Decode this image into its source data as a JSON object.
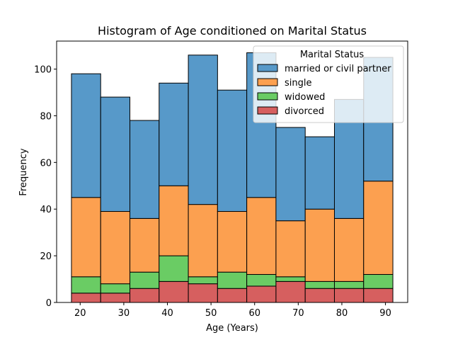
{
  "chart_data": {
    "type": "bar",
    "stacked": true,
    "title": "Histogram of Age conditioned on Marital Status",
    "xlabel": "Age (Years)",
    "ylabel": "Frequency",
    "bin_edges": [
      18,
      24.7,
      31.4,
      38.1,
      44.8,
      51.5,
      58.2,
      64.9,
      71.6,
      78.3,
      85.0,
      91.7
    ],
    "xlim": [
      14.6,
      95.1
    ],
    "ylim": [
      0,
      112
    ],
    "xticks": [
      20,
      30,
      40,
      50,
      60,
      70,
      80,
      90
    ],
    "yticks": [
      0,
      20,
      40,
      60,
      80,
      100
    ],
    "legend": {
      "title": "Marital Status",
      "placement": "upper right"
    },
    "series": [
      {
        "name": "divorced",
        "color": "#d65f5f",
        "values": [
          4,
          4,
          6,
          9,
          8,
          6,
          7,
          9,
          6,
          6,
          6
        ]
      },
      {
        "name": "widowed",
        "color": "#6acc64",
        "values": [
          7,
          4,
          7,
          11,
          3,
          7,
          5,
          2,
          3,
          3,
          6
        ]
      },
      {
        "name": "single",
        "color": "#fca050",
        "values": [
          34,
          31,
          23,
          30,
          31,
          26,
          33,
          24,
          31,
          27,
          40
        ]
      },
      {
        "name": "married or civil partner",
        "color": "#5799c9",
        "values": [
          53,
          49,
          42,
          44,
          64,
          52,
          62,
          40,
          31,
          51,
          53
        ]
      }
    ],
    "legend_order": [
      "married or civil partner",
      "single",
      "widowed",
      "divorced"
    ]
  }
}
